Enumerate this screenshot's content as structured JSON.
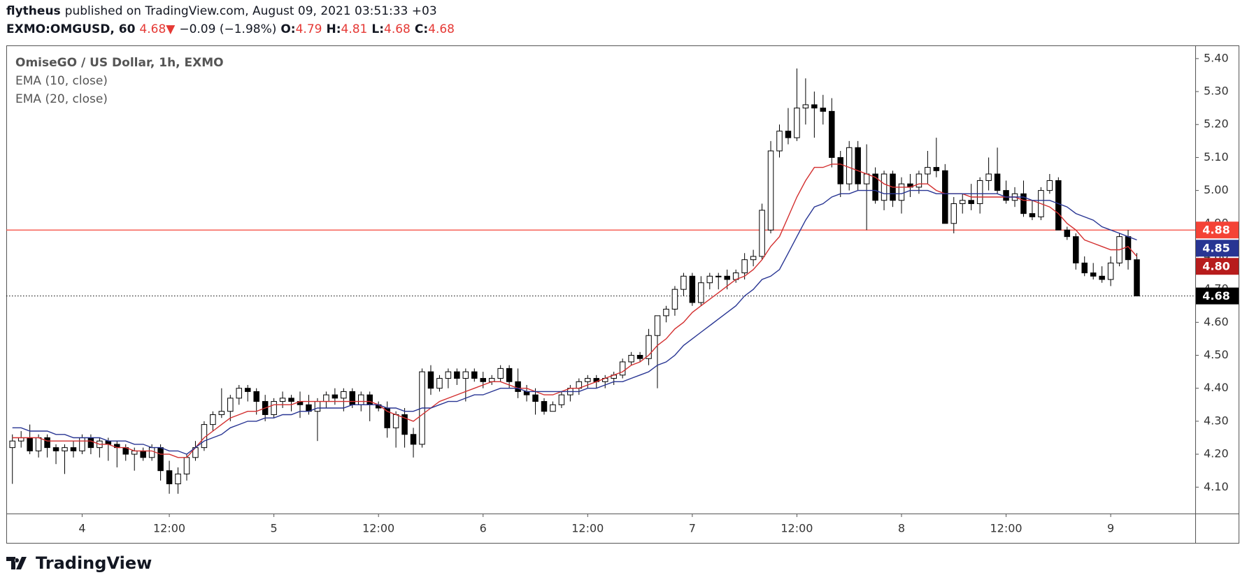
{
  "header": {
    "author": "flytheus",
    "published": "published on TradingView.com, August 09, 2021 03:51:33 +03",
    "symbol": "EXMO:OMGUSD, 60",
    "last": "4.68",
    "arrow": "▼",
    "change": "−0.09 (−1.98%)",
    "o_label": "O:",
    "o": "4.79",
    "h_label": "H:",
    "h": "4.81",
    "l_label": "L:",
    "l": "4.68",
    "c_label": "C:",
    "c": "4.68"
  },
  "footer": {
    "logo": "TradingView"
  },
  "chart_data": {
    "type": "candlestick",
    "title": "OmiseGO / US Dollar, 1h, EXMO",
    "open": [
      4.22,
      4.24,
      4.25,
      4.21,
      4.25,
      4.22,
      4.21,
      4.22,
      4.21,
      4.25,
      4.22,
      4.24,
      4.23,
      4.22,
      4.2,
      4.21,
      4.19,
      4.22,
      4.15,
      4.11,
      4.14,
      4.19,
      4.22,
      4.29,
      4.32,
      4.33,
      4.37,
      4.4,
      4.39,
      4.36,
      4.32,
      4.36,
      4.37,
      4.36,
      4.35,
      4.33,
      4.36,
      4.38,
      4.37,
      4.39,
      4.35,
      4.38,
      4.35,
      4.34,
      4.28,
      4.32,
      4.26,
      4.23,
      4.45,
      4.4,
      4.43,
      4.45,
      4.43,
      4.45,
      4.43,
      4.42,
      4.43,
      4.46,
      4.42,
      4.39,
      4.38,
      4.36,
      4.33,
      4.35,
      4.38,
      4.4,
      4.42,
      4.43,
      4.42,
      4.43,
      4.44,
      4.48,
      4.5,
      4.49,
      4.56,
      4.62,
      4.64,
      4.7,
      4.74,
      4.66,
      4.72,
      4.74,
      4.74,
      4.73,
      4.75,
      4.79,
      4.8,
      4.88,
      5.12,
      5.18,
      5.16,
      5.25,
      5.26,
      5.25,
      5.24,
      5.1,
      5.02,
      5.13,
      5.02,
      5.05,
      4.97,
      5.05,
      4.97,
      5.02,
      5.01,
      5.05,
      5.07,
      5.06,
      4.9,
      4.96,
      4.97,
      4.96,
      5.03,
      5.05,
      5.0,
      4.97,
      4.99,
      4.93,
      4.92,
      5.0,
      5.03,
      4.88,
      4.86,
      4.78,
      4.75,
      4.74,
      4.73,
      4.78,
      4.86,
      4.79
    ],
    "high": [
      4.26,
      4.27,
      4.29,
      4.26,
      4.26,
      4.23,
      4.23,
      4.24,
      4.26,
      4.26,
      4.25,
      4.25,
      4.24,
      4.23,
      4.22,
      4.22,
      4.23,
      4.23,
      4.18,
      4.16,
      4.2,
      4.24,
      4.3,
      4.33,
      4.4,
      4.38,
      4.41,
      4.41,
      4.4,
      4.38,
      4.37,
      4.39,
      4.38,
      4.39,
      4.38,
      4.37,
      4.39,
      4.4,
      4.4,
      4.4,
      4.39,
      4.39,
      4.36,
      4.36,
      4.33,
      4.34,
      4.28,
      4.46,
      4.47,
      4.44,
      4.46,
      4.46,
      4.46,
      4.46,
      4.45,
      4.44,
      4.47,
      4.47,
      4.46,
      4.41,
      4.4,
      4.37,
      4.36,
      4.39,
      4.41,
      4.43,
      4.44,
      4.44,
      4.44,
      4.45,
      4.49,
      4.51,
      4.51,
      4.58,
      4.62,
      4.65,
      4.71,
      4.75,
      4.75,
      4.74,
      4.75,
      4.75,
      4.76,
      4.76,
      4.81,
      4.82,
      4.96,
      5.15,
      5.2,
      5.25,
      5.37,
      5.34,
      5.3,
      5.29,
      5.28,
      5.12,
      5.15,
      5.15,
      5.14,
      5.07,
      5.06,
      5.06,
      5.04,
      5.05,
      5.06,
      5.12,
      5.16,
      5.08,
      4.98,
      4.99,
      5.02,
      5.04,
      5.1,
      5.13,
      5.03,
      5.01,
      5.03,
      4.97,
      5.01,
      5.05,
      5.04,
      4.89,
      4.87,
      4.8,
      4.78,
      4.77,
      4.8,
      4.87,
      4.88,
      4.81
    ],
    "low": [
      4.11,
      4.22,
      4.2,
      4.19,
      4.19,
      4.17,
      4.14,
      4.19,
      4.2,
      4.2,
      4.19,
      4.18,
      4.16,
      4.18,
      4.15,
      4.18,
      4.18,
      4.12,
      4.08,
      4.08,
      4.12,
      4.18,
      4.21,
      4.27,
      4.31,
      4.3,
      4.35,
      4.36,
      4.32,
      4.3,
      4.31,
      4.34,
      4.33,
      4.31,
      4.32,
      4.24,
      4.34,
      4.35,
      4.33,
      4.34,
      4.33,
      4.3,
      4.33,
      4.25,
      4.22,
      4.22,
      4.19,
      4.22,
      4.38,
      4.39,
      4.4,
      4.41,
      4.36,
      4.42,
      4.4,
      4.41,
      4.42,
      4.4,
      4.37,
      4.36,
      4.32,
      4.32,
      4.33,
      4.34,
      4.36,
      4.38,
      4.4,
      4.4,
      4.4,
      4.41,
      4.43,
      4.47,
      4.48,
      4.47,
      4.4,
      4.6,
      4.62,
      4.68,
      4.65,
      4.65,
      4.7,
      4.7,
      4.7,
      4.72,
      4.73,
      4.77,
      4.79,
      4.87,
      5.1,
      5.14,
      5.15,
      5.2,
      5.16,
      5.2,
      5.07,
      4.98,
      5.0,
      5.0,
      4.88,
      4.96,
      4.94,
      4.95,
      4.93,
      4.98,
      4.99,
      5.02,
      5.04,
      4.9,
      4.87,
      4.93,
      4.94,
      4.93,
      5.0,
      4.99,
      4.96,
      4.95,
      4.92,
      4.91,
      4.91,
      4.99,
      4.88,
      4.85,
      4.76,
      4.74,
      4.73,
      4.72,
      4.71,
      4.77,
      4.76,
      4.68
    ],
    "close": [
      4.24,
      4.25,
      4.21,
      4.25,
      4.22,
      4.21,
      4.22,
      4.21,
      4.25,
      4.22,
      4.24,
      4.23,
      4.22,
      4.2,
      4.21,
      4.19,
      4.22,
      4.15,
      4.11,
      4.14,
      4.19,
      4.22,
      4.29,
      4.32,
      4.33,
      4.37,
      4.4,
      4.39,
      4.36,
      4.32,
      4.36,
      4.37,
      4.36,
      4.35,
      4.33,
      4.36,
      4.38,
      4.37,
      4.39,
      4.35,
      4.38,
      4.35,
      4.34,
      4.28,
      4.32,
      4.26,
      4.23,
      4.45,
      4.4,
      4.43,
      4.45,
      4.43,
      4.45,
      4.43,
      4.42,
      4.43,
      4.46,
      4.42,
      4.39,
      4.38,
      4.36,
      4.33,
      4.35,
      4.38,
      4.4,
      4.42,
      4.43,
      4.42,
      4.43,
      4.44,
      4.48,
      4.5,
      4.49,
      4.56,
      4.62,
      4.64,
      4.7,
      4.74,
      4.66,
      4.72,
      4.74,
      4.74,
      4.73,
      4.75,
      4.79,
      4.8,
      4.94,
      5.12,
      5.18,
      5.16,
      5.25,
      5.26,
      5.25,
      5.24,
      5.1,
      5.02,
      5.13,
      5.02,
      5.05,
      4.97,
      5.05,
      4.97,
      5.02,
      5.01,
      5.05,
      5.07,
      5.06,
      4.9,
      4.96,
      4.97,
      4.96,
      5.03,
      5.05,
      5.0,
      4.97,
      4.99,
      4.93,
      4.92,
      5.0,
      5.03,
      4.88,
      4.86,
      4.78,
      4.75,
      4.74,
      4.73,
      4.78,
      4.86,
      4.79,
      4.68
    ],
    "series": [
      {
        "name": "EMA (10, close)",
        "color": "#d32f2f",
        "last_label": "4.80",
        "values": [
          4.25,
          4.25,
          4.25,
          4.25,
          4.24,
          4.24,
          4.24,
          4.24,
          4.24,
          4.24,
          4.23,
          4.23,
          4.22,
          4.22,
          4.21,
          4.21,
          4.21,
          4.2,
          4.2,
          4.19,
          4.19,
          4.22,
          4.25,
          4.27,
          4.29,
          4.31,
          4.32,
          4.33,
          4.33,
          4.34,
          4.35,
          4.35,
          4.35,
          4.36,
          4.36,
          4.36,
          4.36,
          4.36,
          4.36,
          4.36,
          4.36,
          4.36,
          4.35,
          4.33,
          4.32,
          4.31,
          4.3,
          4.32,
          4.34,
          4.36,
          4.37,
          4.38,
          4.39,
          4.4,
          4.41,
          4.42,
          4.42,
          4.41,
          4.4,
          4.4,
          4.39,
          4.38,
          4.38,
          4.39,
          4.4,
          4.4,
          4.41,
          4.42,
          4.43,
          4.44,
          4.45,
          4.47,
          4.48,
          4.5,
          4.53,
          4.55,
          4.58,
          4.6,
          4.63,
          4.65,
          4.67,
          4.69,
          4.71,
          4.73,
          4.74,
          4.76,
          4.79,
          4.83,
          4.86,
          4.92,
          4.98,
          5.03,
          5.07,
          5.07,
          5.08,
          5.08,
          5.07,
          5.06,
          5.05,
          5.04,
          5.02,
          5.01,
          5.01,
          5.01,
          5.02,
          5.02,
          5.0,
          4.99,
          4.99,
          4.99,
          4.98,
          4.98,
          4.98,
          4.98,
          4.98,
          4.98,
          4.97,
          4.97,
          4.96,
          4.95,
          4.93,
          4.9,
          4.88,
          4.85,
          4.84,
          4.83,
          4.82,
          4.82,
          4.83,
          4.8
        ]
      },
      {
        "name": "EMA (20, close)",
        "color": "#283593",
        "last_label": "4.85",
        "values": [
          4.28,
          4.28,
          4.27,
          4.27,
          4.27,
          4.26,
          4.26,
          4.25,
          4.25,
          4.25,
          4.25,
          4.24,
          4.24,
          4.24,
          4.23,
          4.23,
          4.22,
          4.22,
          4.21,
          4.21,
          4.2,
          4.22,
          4.24,
          4.25,
          4.26,
          4.28,
          4.29,
          4.3,
          4.3,
          4.31,
          4.31,
          4.32,
          4.32,
          4.33,
          4.33,
          4.34,
          4.34,
          4.34,
          4.34,
          4.35,
          4.35,
          4.35,
          4.35,
          4.34,
          4.34,
          4.33,
          4.33,
          4.34,
          4.34,
          4.35,
          4.36,
          4.36,
          4.37,
          4.38,
          4.38,
          4.39,
          4.4,
          4.4,
          4.4,
          4.39,
          4.39,
          4.39,
          4.39,
          4.39,
          4.39,
          4.39,
          4.4,
          4.4,
          4.41,
          4.42,
          4.42,
          4.43,
          4.44,
          4.45,
          4.47,
          4.48,
          4.5,
          4.53,
          4.55,
          4.57,
          4.59,
          4.61,
          4.63,
          4.65,
          4.68,
          4.7,
          4.73,
          4.74,
          4.76,
          4.81,
          4.86,
          4.91,
          4.95,
          4.96,
          4.98,
          4.99,
          4.99,
          5.0,
          5.0,
          5.0,
          4.99,
          4.99,
          4.99,
          5.0,
          5.0,
          5.0,
          4.99,
          4.99,
          4.99,
          4.99,
          4.99,
          4.99,
          4.99,
          4.99,
          4.98,
          4.98,
          4.98,
          4.97,
          4.97,
          4.97,
          4.96,
          4.95,
          4.93,
          4.92,
          4.91,
          4.89,
          4.88,
          4.87,
          4.86,
          4.85
        ]
      }
    ],
    "hline": 4.88,
    "hline_color": "#f44336",
    "last_color": "#000000",
    "up_color": "#ffffff",
    "down_color": "#000000",
    "xlim": [
      -0.7,
      135.7
    ],
    "xticks": [
      {
        "value": 8,
        "label": "4"
      },
      {
        "value": 18,
        "label": "12:00"
      },
      {
        "value": 30,
        "label": "5"
      },
      {
        "value": 42,
        "label": "12:00"
      },
      {
        "value": 54,
        "label": "6"
      },
      {
        "value": 66,
        "label": "12:00"
      },
      {
        "value": 78,
        "label": "7"
      },
      {
        "value": 90,
        "label": "12:00"
      },
      {
        "value": 102,
        "label": "8"
      },
      {
        "value": 114,
        "label": "12:00"
      },
      {
        "value": 126,
        "label": "9"
      }
    ],
    "ylim": [
      4.02,
      5.44
    ],
    "yticks": [
      {
        "value": 4.1,
        "label": "4.10"
      },
      {
        "value": 4.2,
        "label": "4.20"
      },
      {
        "value": 4.3,
        "label": "4.30"
      },
      {
        "value": 4.4,
        "label": "4.40"
      },
      {
        "value": 4.5,
        "label": "4.50"
      },
      {
        "value": 4.6,
        "label": "4.60"
      },
      {
        "value": 4.7,
        "label": "4.70"
      },
      {
        "value": 4.8,
        "label": "4.80"
      },
      {
        "value": 4.9,
        "label": "4.90"
      },
      {
        "value": 5.0,
        "label": "5.00"
      },
      {
        "value": 5.1,
        "label": "5.10"
      },
      {
        "value": 5.2,
        "label": "5.20"
      },
      {
        "value": 5.3,
        "label": "5.30"
      },
      {
        "value": 5.4,
        "label": "5.40"
      }
    ],
    "grid": false
  }
}
